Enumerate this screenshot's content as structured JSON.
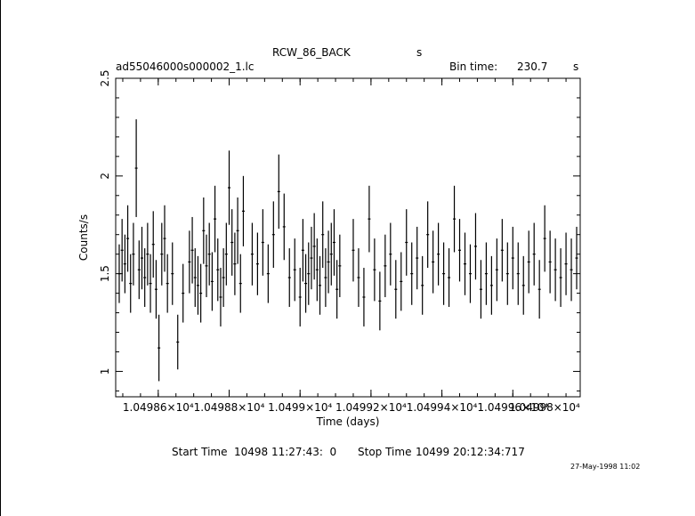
{
  "header": {
    "object": "RCW_86_BACK",
    "object_unit": "s",
    "file": "ad55046000s000002_1.lc",
    "bin_label": "Bin time:",
    "bin_value": "230.7",
    "bin_unit": "s"
  },
  "footer": {
    "start_label": "Start Time",
    "start_value": "10498 11:27:43:  0",
    "stop_label": "Stop Time",
    "stop_value": "10499 20:12:34:717",
    "stamp": "27-May-1998 11:02"
  },
  "chart_data": {
    "type": "scatter",
    "xlabel": "Time (days)",
    "ylabel": "Counts/s",
    "xlim": [
      10498.48,
      10499.79
    ],
    "ylim": [
      0.87,
      2.5
    ],
    "yticks": [
      1,
      1.5,
      2,
      2.5
    ],
    "ytick_labels": [
      "1",
      "1.5",
      "2",
      "2.5"
    ],
    "xticks": [
      10498.6,
      10498.8,
      10499.0,
      10499.2,
      10499.4,
      10499.6,
      10499.8
    ],
    "xtick_labels": [
      "1.04986×10⁴",
      "1.04988×10⁴",
      "1.0499×10⁴",
      "1.04992×10⁴",
      "1.04994×10⁴",
      "1.04996×10⁴",
      "1.04998×10⁴"
    ],
    "grid": false,
    "series": [
      {
        "x": [
          10498.49,
          10498.498,
          10498.506,
          10498.514,
          10498.522,
          10498.53,
          10498.538,
          10498.546,
          10498.554,
          10498.562,
          10498.57,
          10498.578,
          10498.586,
          10498.594,
          10498.602,
          10498.61,
          10498.618,
          10498.626,
          10498.64,
          10498.655,
          10498.67,
          10498.688,
          10498.696,
          10498.704,
          10498.712,
          10498.72,
          10498.728,
          10498.736,
          10498.744,
          10498.752,
          10498.76,
          10498.768,
          10498.776,
          10498.784,
          10498.792,
          10498.8,
          10498.808,
          10498.816,
          10498.824,
          10498.832,
          10498.84,
          10498.865,
          10498.88,
          10498.895,
          10498.91,
          10498.925,
          10498.94,
          10498.955,
          10498.97,
          10498.985,
          10499.0,
          10499.008,
          10499.016,
          10499.024,
          10499.032,
          10499.04,
          10499.048,
          10499.056,
          10499.064,
          10499.072,
          10499.08,
          10499.088,
          10499.096,
          10499.104,
          10499.112,
          10499.15,
          10499.165,
          10499.18,
          10499.195,
          10499.21,
          10499.225,
          10499.24,
          10499.255,
          10499.27,
          10499.285,
          10499.3,
          10499.315,
          10499.33,
          10499.345,
          10499.36,
          10499.375,
          10499.39,
          10499.405,
          10499.42,
          10499.435,
          10499.45,
          10499.465,
          10499.48,
          10499.495,
          10499.51,
          10499.525,
          10499.54,
          10499.555,
          10499.57,
          10499.585,
          10499.6,
          10499.615,
          10499.63,
          10499.645,
          10499.66,
          10499.675,
          10499.69,
          10499.705,
          10499.72,
          10499.735,
          10499.75,
          10499.765,
          10499.78
        ],
        "y": [
          1.5,
          1.62,
          1.55,
          1.68,
          1.45,
          1.6,
          2.04,
          1.52,
          1.58,
          1.48,
          1.6,
          1.45,
          1.65,
          1.42,
          1.12,
          1.6,
          1.68,
          1.45,
          1.5,
          1.15,
          1.4,
          1.56,
          1.62,
          1.48,
          1.44,
          1.4,
          1.72,
          1.54,
          1.6,
          1.46,
          1.78,
          1.52,
          1.38,
          1.48,
          1.6,
          1.94,
          1.66,
          1.55,
          1.72,
          1.45,
          1.82,
          1.6,
          1.55,
          1.66,
          1.5,
          1.7,
          1.92,
          1.74,
          1.48,
          1.52,
          1.38,
          1.62,
          1.45,
          1.5,
          1.58,
          1.64,
          1.52,
          1.44,
          1.7,
          1.48,
          1.56,
          1.6,
          1.66,
          1.42,
          1.54,
          1.62,
          1.48,
          1.38,
          1.78,
          1.52,
          1.36,
          1.54,
          1.6,
          1.42,
          1.46,
          1.66,
          1.5,
          1.58,
          1.44,
          1.7,
          1.56,
          1.6,
          1.5,
          1.48,
          1.78,
          1.62,
          1.55,
          1.5,
          1.64,
          1.42,
          1.5,
          1.44,
          1.52,
          1.62,
          1.5,
          1.58,
          1.5,
          1.44,
          1.56,
          1.6,
          1.42,
          1.68,
          1.56,
          1.52,
          1.48,
          1.55,
          1.52,
          1.58
        ],
        "yerr": [
          0.15,
          0.16,
          0.15,
          0.17,
          0.15,
          0.16,
          0.25,
          0.15,
          0.16,
          0.15,
          0.16,
          0.15,
          0.17,
          0.15,
          0.17,
          0.16,
          0.17,
          0.15,
          0.16,
          0.14,
          0.15,
          0.16,
          0.17,
          0.15,
          0.15,
          0.15,
          0.17,
          0.16,
          0.16,
          0.15,
          0.17,
          0.16,
          0.15,
          0.15,
          0.16,
          0.19,
          0.17,
          0.16,
          0.17,
          0.15,
          0.18,
          0.16,
          0.16,
          0.17,
          0.15,
          0.17,
          0.19,
          0.17,
          0.15,
          0.16,
          0.15,
          0.16,
          0.15,
          0.16,
          0.16,
          0.17,
          0.16,
          0.15,
          0.17,
          0.15,
          0.16,
          0.16,
          0.17,
          0.15,
          0.16,
          0.16,
          0.15,
          0.15,
          0.17,
          0.16,
          0.15,
          0.16,
          0.16,
          0.15,
          0.15,
          0.17,
          0.16,
          0.16,
          0.15,
          0.17,
          0.16,
          0.16,
          0.16,
          0.15,
          0.17,
          0.16,
          0.16,
          0.15,
          0.17,
          0.15,
          0.16,
          0.15,
          0.16,
          0.16,
          0.16,
          0.16,
          0.16,
          0.15,
          0.16,
          0.16,
          0.15,
          0.17,
          0.16,
          0.16,
          0.15,
          0.16,
          0.16,
          0.16
        ]
      }
    ]
  }
}
